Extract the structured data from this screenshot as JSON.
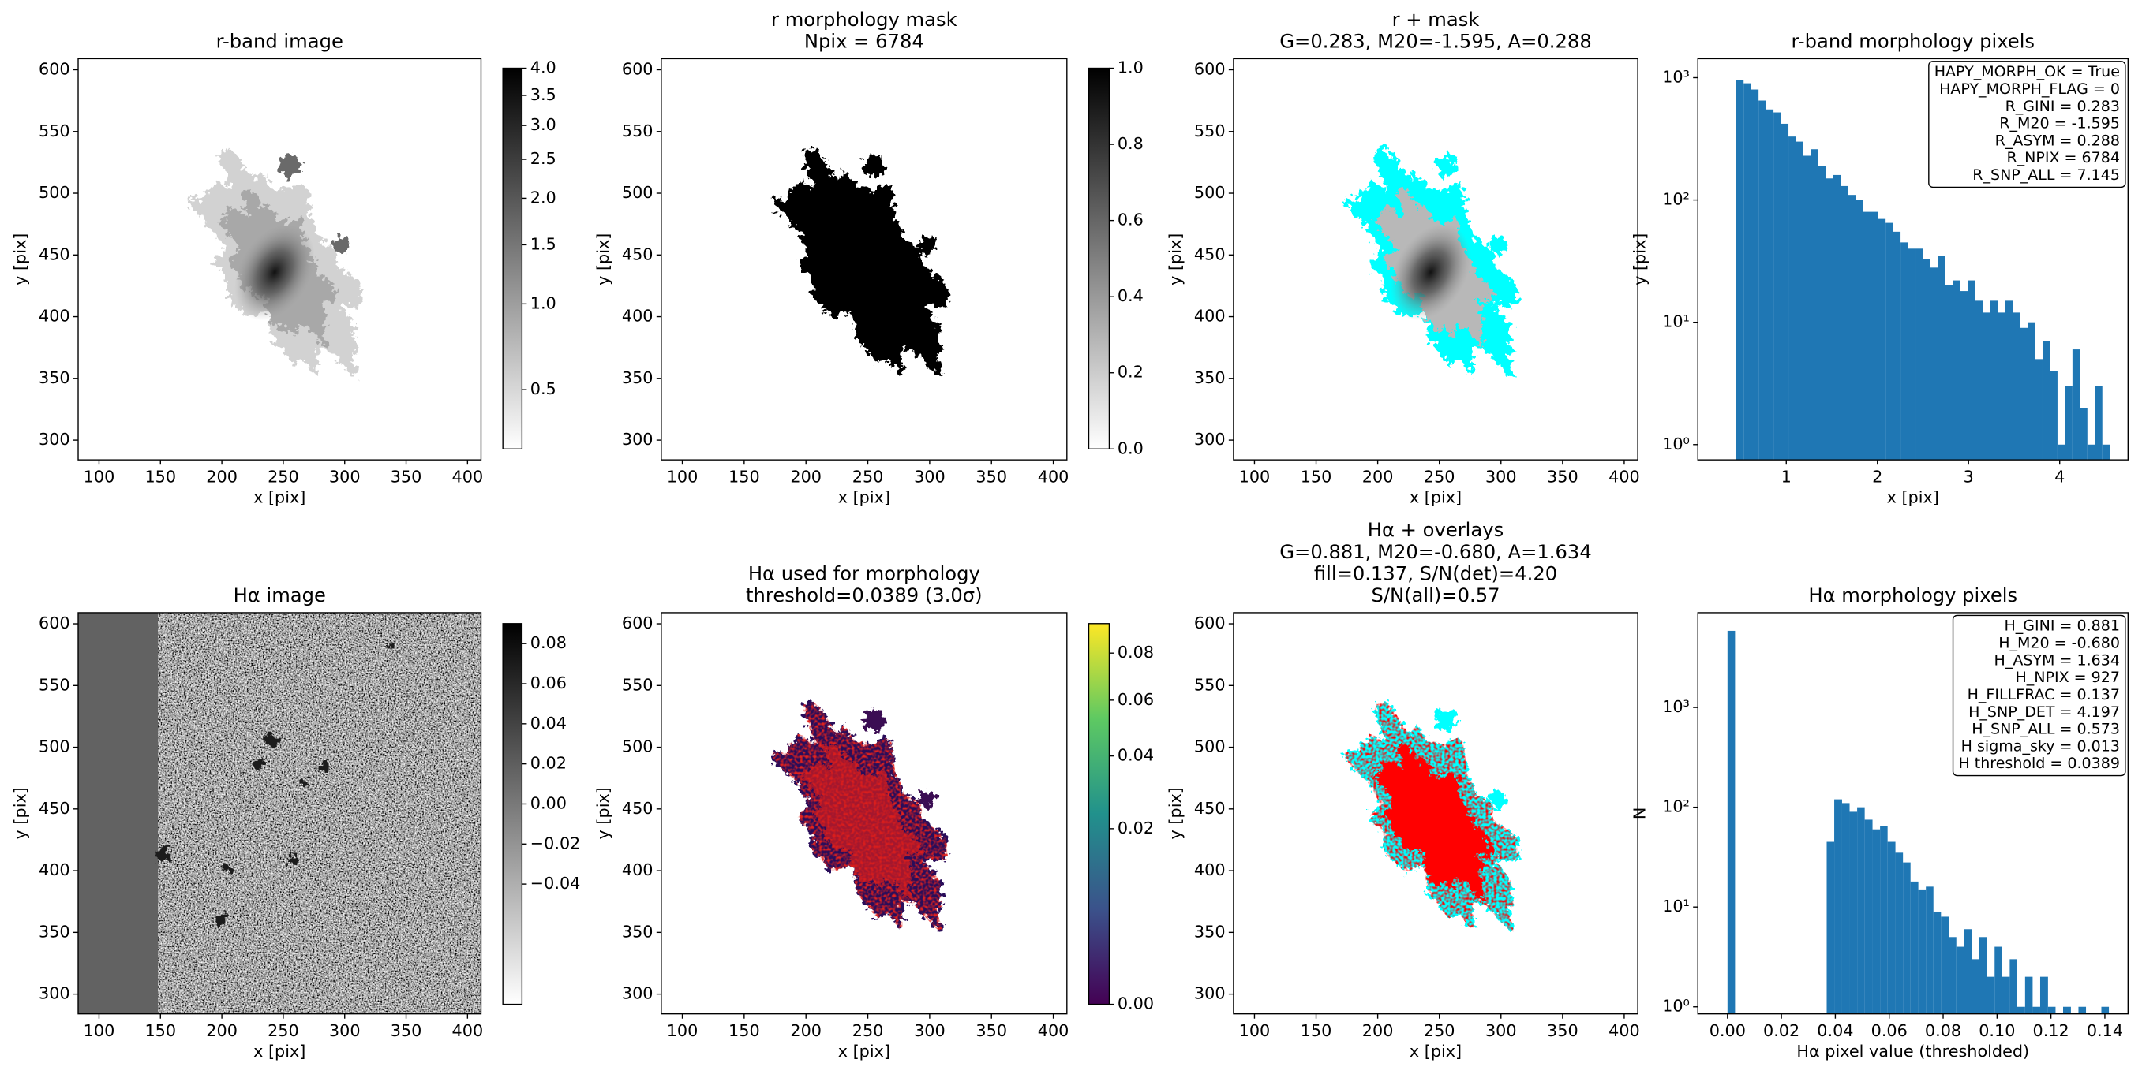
{
  "chart_data": [
    {
      "type": "image",
      "title": [
        "r-band image"
      ],
      "xlabel": "x [pix]",
      "ylabel": "y [pix]",
      "xlim": [
        83,
        411
      ],
      "ylim": [
        284,
        609
      ],
      "xticks": [
        100,
        150,
        200,
        250,
        300,
        350,
        400
      ],
      "yticks": [
        300,
        350,
        400,
        450,
        500,
        550,
        600
      ],
      "cmap": "gray_r",
      "colorbar": {
        "lim": [
          0.28,
          4.0
        ],
        "scale": "power",
        "gamma": 0.3,
        "ticks": [
          0.5,
          {
            "value": 1.0,
            "label": "1.0"
          },
          1.5,
          {
            "value": 2.0,
            "label": "2.0"
          },
          2.5,
          {
            "value": 3.0,
            "label": "3.0"
          },
          3.5,
          {
            "value": 4.0,
            "label": "4.0"
          }
        ]
      }
    },
    {
      "type": "image",
      "title": [
        "r morphology mask",
        "Npix = 6784"
      ],
      "xlabel": "x [pix]",
      "ylabel": "y [pix]",
      "xlim": [
        83,
        411
      ],
      "ylim": [
        284,
        609
      ],
      "xticks": [
        100,
        150,
        200,
        250,
        300,
        350,
        400
      ],
      "yticks": [
        300,
        350,
        400,
        450,
        500,
        550,
        600
      ],
      "cmap": "gray_r",
      "colorbar": {
        "lim": [
          0,
          1
        ],
        "scale": "linear",
        "ticks": [
          {
            "value": 0,
            "label": "0.0"
          },
          0.2,
          0.4,
          0.6,
          0.8,
          {
            "value": 1,
            "label": "1.0"
          }
        ]
      }
    },
    {
      "type": "image",
      "title": [
        "r + mask",
        "G=0.283, M20=-1.595, A=0.288"
      ],
      "xlabel": "x [pix]",
      "ylabel": "y [pix]",
      "xlim": [
        83,
        411
      ],
      "ylim": [
        284,
        609
      ],
      "xticks": [
        100,
        150,
        200,
        250,
        300,
        350,
        400
      ],
      "yticks": [
        300,
        350,
        400,
        450,
        500,
        550,
        600
      ],
      "cmap": "gray_r",
      "overlay_colors": [
        "#00ffff"
      ]
    },
    {
      "type": "histogram",
      "title": [
        "r-band morphology pixels"
      ],
      "xlabel": "x [pix]",
      "ylabel": "y [pix]",
      "bins": [
        0.45,
        0.532,
        0.614,
        0.696,
        0.778,
        0.86,
        0.942,
        1.024,
        1.106,
        1.188,
        1.27,
        1.352,
        1.434,
        1.516,
        1.598,
        1.68,
        1.762,
        1.844,
        1.926,
        2.008,
        2.09,
        2.172,
        2.254,
        2.336,
        2.418,
        2.5,
        2.582,
        2.664,
        2.746,
        2.828,
        2.91,
        2.992,
        3.074,
        3.156,
        3.238,
        3.32,
        3.402,
        3.484,
        3.566,
        3.648,
        3.73,
        3.812,
        3.894,
        3.976,
        4.058,
        4.14,
        4.222,
        4.304,
        4.386,
        4.468,
        4.55
      ],
      "values": [
        950,
        900,
        800,
        650,
        550,
        520,
        420,
        330,
        300,
        230,
        260,
        190,
        150,
        160,
        130,
        110,
        100,
        80,
        80,
        70,
        65,
        55,
        45,
        40,
        40,
        33,
        28,
        35,
        20,
        22,
        18,
        22,
        15,
        12,
        15,
        12,
        15,
        12,
        9,
        10,
        5,
        7,
        4,
        1,
        3,
        6,
        2,
        1,
        3,
        1
      ],
      "color": "#1f77b4",
      "xlim": [
        0.03,
        4.75
      ],
      "ylim": [
        0.75,
        1430
      ],
      "yscale": "log",
      "xticks": [
        1,
        2,
        3,
        4
      ],
      "yticks": [
        {
          "value": 1,
          "label": "10⁰"
        },
        {
          "value": 10,
          "label": "10¹"
        },
        {
          "value": 100,
          "label": "10²"
        },
        {
          "value": 1000,
          "label": "10³"
        }
      ],
      "annotation": [
        "HAPY_MORPH_OK = True",
        "HAPY_MORPH_FLAG = 0",
        "R_GINI = 0.283",
        "R_M20 = -1.595",
        "R_ASYM = 0.288",
        "R_NPIX = 6784",
        "R_SNP_ALL = 7.145"
      ]
    },
    {
      "type": "image",
      "title": [
        "Hα image"
      ],
      "xlabel": "x [pix]",
      "ylabel": "y [pix]",
      "xlim": [
        83,
        411
      ],
      "ylim": [
        284,
        609
      ],
      "xticks": [
        100,
        150,
        200,
        250,
        300,
        350,
        400
      ],
      "yticks": [
        300,
        350,
        400,
        450,
        500,
        550,
        600
      ],
      "cmap": "gray_r",
      "colorbar": {
        "lim": [
          -0.1,
          0.09
        ],
        "scale": "linear",
        "ticks": [
          0.08,
          0.06,
          0.04,
          0.02,
          {
            "value": 0,
            "label": "0.00"
          },
          {
            "value": -0.02,
            "label": "−0.02"
          },
          {
            "value": -0.04,
            "label": "−0.04"
          }
        ]
      }
    },
    {
      "type": "image",
      "title": [
        "Hα used for morphology",
        "threshold=0.0389 (3.0σ)"
      ],
      "xlabel": "x [pix]",
      "ylabel": "y [pix]",
      "xlim": [
        83,
        411
      ],
      "ylim": [
        284,
        609
      ],
      "xticks": [
        100,
        150,
        200,
        250,
        300,
        350,
        400
      ],
      "yticks": [
        300,
        350,
        400,
        450,
        500,
        550,
        600
      ],
      "cmap": "viridis",
      "colorbar": {
        "lim": [
          0,
          0.094
        ],
        "scale": "power",
        "gamma": 0.5,
        "ticks": [
          {
            "value": 0,
            "label": "0.00"
          },
          0.02,
          0.04,
          0.06,
          0.08
        ]
      }
    },
    {
      "type": "image",
      "title": [
        "Hα + overlays",
        "G=0.881, M20=-0.680, A=1.634",
        "fill=0.137, S/N(det)=4.20",
        "S/N(all)=0.57"
      ],
      "xlabel": "x [pix]",
      "ylabel": "y [pix]",
      "xlim": [
        83,
        411
      ],
      "ylim": [
        284,
        609
      ],
      "xticks": [
        100,
        150,
        200,
        250,
        300,
        350,
        400
      ],
      "yticks": [
        300,
        350,
        400,
        450,
        500,
        550,
        600
      ],
      "cmap": "gray_r",
      "overlay_colors": [
        "#00ffff",
        "#ff0000"
      ]
    },
    {
      "type": "histogram",
      "title": [
        "Hα morphology pixels"
      ],
      "xlabel": "Hα pixel value (thresholded)",
      "ylabel": "N",
      "bins": [
        0,
        0.0028,
        0.0057,
        0.0085,
        0.0113,
        0.0142,
        0.017,
        0.0198,
        0.0226,
        0.0255,
        0.0283,
        0.0311,
        0.034,
        0.0368,
        0.0396,
        0.0425,
        0.0453,
        0.0481,
        0.0509,
        0.0538,
        0.0566,
        0.0594,
        0.0623,
        0.0651,
        0.0679,
        0.0708,
        0.0736,
        0.0764,
        0.0792,
        0.0821,
        0.0849,
        0.0877,
        0.0906,
        0.0934,
        0.0962,
        0.0991,
        0.1019,
        0.1047,
        0.1075,
        0.1104,
        0.1132,
        0.116,
        0.1189,
        0.1217,
        0.1245,
        0.1274,
        0.1302,
        0.133,
        0.1358,
        0.1387,
        0.1415
      ],
      "values": [
        5857,
        0,
        0,
        0,
        0,
        0,
        0,
        0,
        0,
        0,
        0,
        0,
        0,
        45,
        120,
        110,
        90,
        100,
        75,
        60,
        65,
        45,
        35,
        28,
        18,
        15,
        16,
        9,
        8,
        5,
        4,
        6,
        3,
        5,
        2,
        4,
        2,
        3,
        1,
        2,
        1,
        2,
        1,
        0,
        1,
        0,
        1,
        0,
        0,
        1
      ],
      "color": "#1f77b4",
      "xlim": [
        -0.011,
        0.1486
      ],
      "ylim": [
        0.85,
        8900
      ],
      "yscale": "log",
      "xticks": [
        {
          "value": 0,
          "label": "0.00"
        },
        0.02,
        0.04,
        0.06,
        0.08,
        {
          "value": 0.1,
          "label": "0.10"
        },
        0.12,
        0.14
      ],
      "yticks": [
        {
          "value": 1,
          "label": "10⁰"
        },
        {
          "value": 10,
          "label": "10¹"
        },
        {
          "value": 100,
          "label": "10²"
        },
        {
          "value": 1000,
          "label": "10³"
        }
      ],
      "annotation": [
        "H_GINI = 0.881",
        "H_M20 = -0.680",
        "H_ASYM = 1.634",
        "H_NPIX = 927",
        "H_FILLFRAC = 0.137",
        "H_SNP_DET = 4.197",
        "H_SNP_ALL = 0.573",
        "H sigma_sky = 0.013",
        "H threshold = 0.0389"
      ]
    }
  ]
}
